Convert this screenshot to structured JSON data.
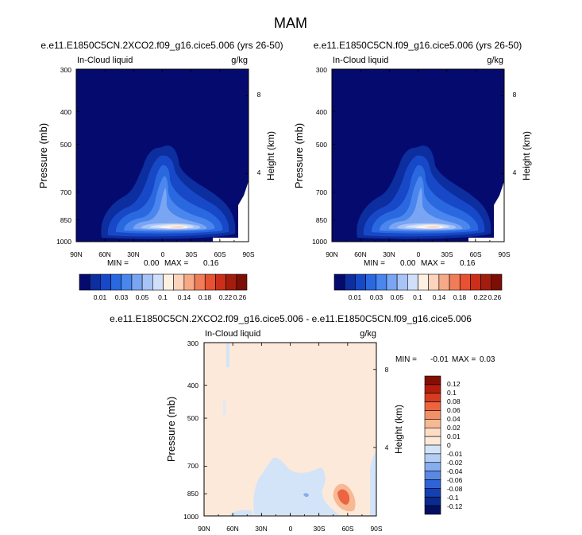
{
  "figure": {
    "title": "MAM"
  },
  "chart_data": [
    {
      "type": "contour",
      "title": "e.e11.E1850C5CN.2XCO2.f09_g16.cice5.006 (yrs 26-50)",
      "left_label": "In-Cloud liquid",
      "right_label": "g/kg",
      "ylabel": "Pressure (mb)",
      "ylabel_right": "Height (km)",
      "x_ticks": [
        "90N",
        "60N",
        "30N",
        "0",
        "30S",
        "60S",
        "90S"
      ],
      "y_ticks": [
        "300",
        "400",
        "500",
        "700",
        "850",
        "1000"
      ],
      "y_ticks_right": [
        "8",
        "4"
      ],
      "min_label": "MIN =",
      "min_value": "0.00",
      "max_label": "MAX =",
      "max_value": "0.16",
      "colorbar_labels": [
        "0.01",
        "0.03",
        "0.05",
        "0.1",
        "0.14",
        "0.18",
        "0.22",
        "0.26"
      ]
    },
    {
      "type": "contour",
      "title": "e.e11.E1850C5CN.f09_g16.cice5.006 (yrs 26-50)",
      "left_label": "In-Cloud liquid",
      "right_label": "g/kg",
      "ylabel": "Pressure (mb)",
      "ylabel_right": "Height (km)",
      "x_ticks": [
        "90N",
        "60N",
        "30N",
        "0",
        "30S",
        "60S",
        "90S"
      ],
      "y_ticks": [
        "300",
        "400",
        "500",
        "700",
        "850",
        "1000"
      ],
      "y_ticks_right": [
        "8",
        "4"
      ],
      "min_label": "MIN =",
      "min_value": "0.00",
      "max_label": "MAX =",
      "max_value": "0.16",
      "colorbar_labels": [
        "0.01",
        "0.03",
        "0.05",
        "0.1",
        "0.14",
        "0.18",
        "0.22",
        "0.26"
      ]
    },
    {
      "type": "contour",
      "title": "e.e11.E1850C5CN.2XCO2.f09_g16.cice5.006 - e.e11.E1850C5CN.f09_g16.cice5.006",
      "left_label": "In-Cloud liquid",
      "right_label": "g/kg",
      "ylabel": "Pressure (mb)",
      "ylabel_right": "Height (km)",
      "x_ticks": [
        "90N",
        "60N",
        "30N",
        "0",
        "30S",
        "60S",
        "90S"
      ],
      "y_ticks": [
        "300",
        "400",
        "500",
        "700",
        "850",
        "1000"
      ],
      "y_ticks_right": [
        "8",
        "4"
      ],
      "min_label": "MIN =",
      "min_value": "-0.01",
      "max_label": "MAX =",
      "max_value": "0.03",
      "colorbar_labels": [
        "0.12",
        "0.1",
        "0.08",
        "0.06",
        "0.04",
        "0.02",
        "0.01",
        "0",
        "-0.01",
        "-0.02",
        "-0.04",
        "-0.06",
        "-0.08",
        "-0.1",
        "-0.12"
      ]
    }
  ],
  "colors": {
    "abs_scale": [
      "#050a6e",
      "#0c2e9e",
      "#1748c7",
      "#2a68e0",
      "#4a86ee",
      "#7aa5f2",
      "#a8c3f6",
      "#d0e0fa",
      "#fff1e2",
      "#fcd3bb",
      "#f7a987",
      "#f17d58",
      "#e65232",
      "#cb2f1a",
      "#a31d0f",
      "#7b0f05"
    ],
    "diff_scale": [
      "#830e05",
      "#b41c0c",
      "#d83c20",
      "#ec6540",
      "#f39166",
      "#f7b894",
      "#fddec5",
      "#fde9d9",
      "#d3e4f8",
      "#b3cdf4",
      "#86adee",
      "#5889e4",
      "#2f64d6",
      "#1540b4",
      "#0b2a8e",
      "#050f62"
    ],
    "diff_background": "#fde9d9"
  }
}
